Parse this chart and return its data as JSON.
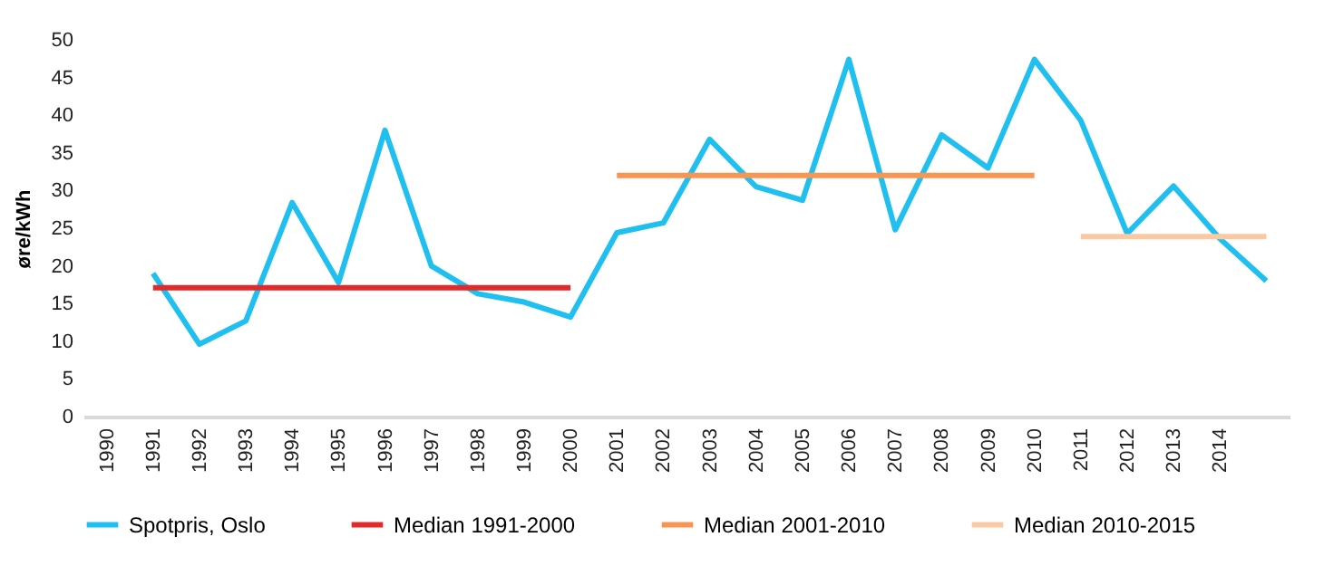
{
  "chart_data": {
    "type": "line",
    "ylabel": "øre/kWh",
    "categories": [
      "1990",
      "1991",
      "1992",
      "1993",
      "1994",
      "1995",
      "1996",
      "1997",
      "1998",
      "1999",
      "2000",
      "2001",
      "2002",
      "2003",
      "2004",
      "2005",
      "2006",
      "2007",
      "2008",
      "2009",
      "2010",
      "2011",
      "2012",
      "2013",
      "2014",
      null
    ],
    "series": [
      {
        "name": "Spotpris, Oslo",
        "color": "#1fbfef",
        "values": [
          null,
          19,
          9.6,
          12.7,
          28.4,
          17.8,
          38,
          20,
          16.3,
          15.2,
          13.2,
          24.4,
          25.7,
          36.8,
          30.5,
          28.7,
          47.4,
          24.8,
          37.4,
          33,
          47.4,
          39.3,
          24.3,
          30.6,
          23.6,
          18
        ]
      },
      {
        "name": "Median 1991-2000",
        "color": "#e02b2b",
        "values": [
          null,
          17.1,
          17.1,
          17.1,
          17.1,
          17.1,
          17.1,
          17.1,
          17.1,
          17.1,
          17.1,
          null,
          null,
          null,
          null,
          null,
          null,
          null,
          null,
          null,
          null,
          null,
          null,
          null,
          null,
          null
        ]
      },
      {
        "name": "Median 2001-2010",
        "color": "#f79552",
        "values": [
          null,
          null,
          null,
          null,
          null,
          null,
          null,
          null,
          null,
          null,
          null,
          32,
          32,
          32,
          32,
          32,
          32,
          32,
          32,
          32,
          32,
          null,
          null,
          null,
          null,
          null
        ]
      },
      {
        "name": "Median 2010-2015",
        "color": "#f9c9a3",
        "values": [
          null,
          null,
          null,
          null,
          null,
          null,
          null,
          null,
          null,
          null,
          null,
          null,
          null,
          null,
          null,
          null,
          null,
          null,
          null,
          null,
          null,
          23.9,
          23.9,
          23.9,
          23.9,
          23.9
        ]
      }
    ],
    "ylim": [
      0,
      50
    ],
    "yticks": [
      0,
      5,
      10,
      15,
      20,
      25,
      30,
      35,
      40,
      45,
      50
    ],
    "grid": false,
    "legend": "bottom",
    "marker": "none",
    "line_style": "solid"
  }
}
